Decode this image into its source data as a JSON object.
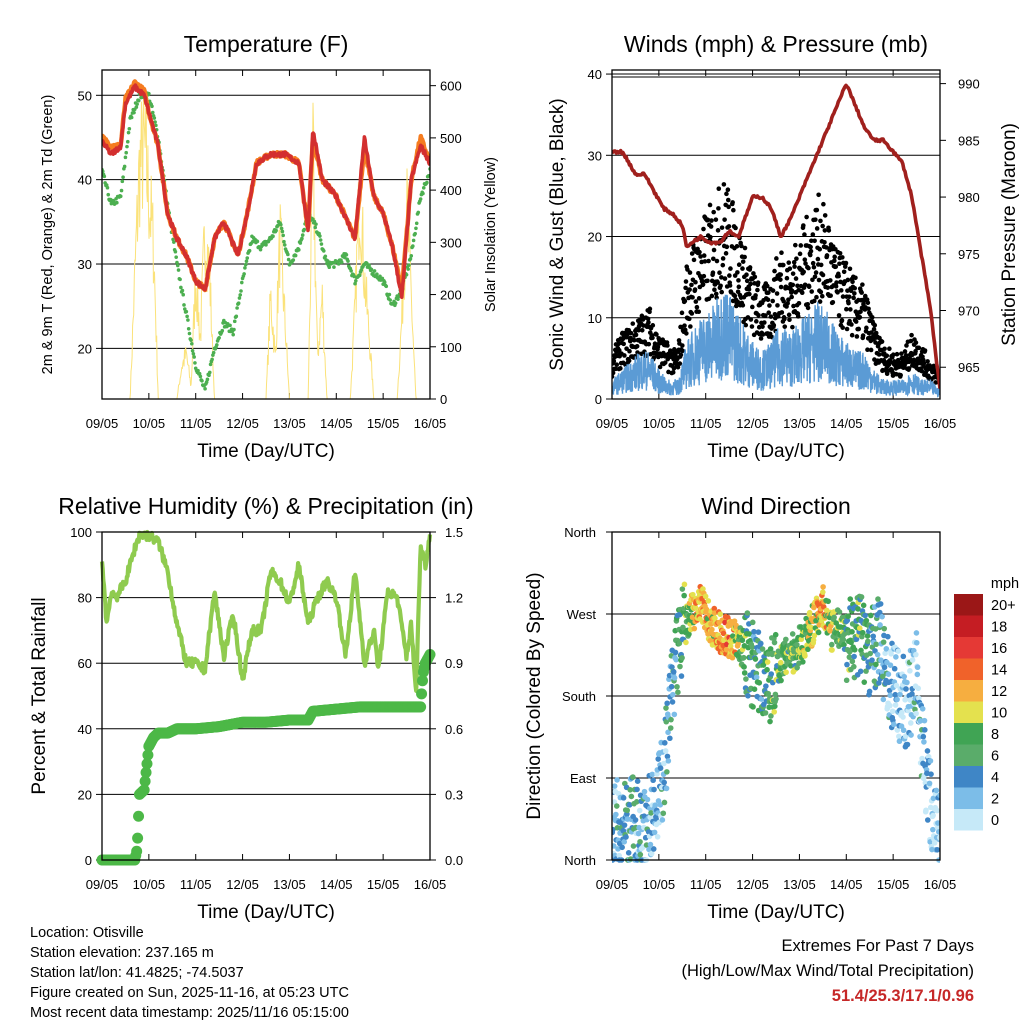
{
  "info": {
    "location": "Location: Otisville",
    "elevation": "Station elevation: 237.165 m",
    "latlon": "Station lat/lon: 41.4825; -74.5037",
    "created": "Figure created on Sun, 2025-11-16, at 05:23 UTC",
    "latest": "Most recent data timestamp: 2025/11/16 05:15:00"
  },
  "extremes": {
    "title": "Extremes For Past 7 Days",
    "subtitle": "(High/Low/Max Wind/Total Precipitation)",
    "values": "51.4/25.3/17.1/0.96"
  },
  "colors": {
    "temp2m": "#d32f2f",
    "temp9m": "#f57c20",
    "dew": "#4caf50",
    "solar": "#fbe27a",
    "gust": "#000000",
    "wind": "#5b9bd5",
    "pressure": "#a0201d",
    "rh": "#8fcb4f",
    "rain": "#4cb847"
  },
  "chart_data": [
    {
      "type": "line",
      "title": "Temperature (F)",
      "xlabel": "Time (Day/UTC)",
      "ylabel": "2m & 9m T (Red, Orange) & 2m Td (Green)",
      "ylabel_right": "Solar Insolation (Yellow)",
      "x_ticks": [
        "09/05",
        "10/05",
        "11/05",
        "12/05",
        "13/05",
        "14/05",
        "15/05",
        "16/05"
      ],
      "xlim": [
        0,
        7
      ],
      "ylim": [
        14,
        53
      ],
      "y_ticks": [
        20,
        30,
        40,
        50
      ],
      "ylim_right": [
        0,
        630
      ],
      "y_ticks_right": [
        0,
        100,
        200,
        300,
        400,
        500,
        600
      ],
      "grid": "horizontal",
      "series": [
        {
          "name": "2m T",
          "x": [
            0,
            0.2,
            0.4,
            0.5,
            0.7,
            0.9,
            1.0,
            1.2,
            1.4,
            1.6,
            1.8,
            2.0,
            2.2,
            2.4,
            2.6,
            2.9,
            3.1,
            3.3,
            3.6,
            3.9,
            4.2,
            4.4,
            4.5,
            4.7,
            5.0,
            5.4,
            5.6,
            5.8,
            6.0,
            6.2,
            6.4,
            6.6,
            6.8,
            7.0
          ],
          "values": [
            44.5,
            43,
            44,
            49,
            51,
            50,
            48,
            44,
            36,
            33,
            31,
            28,
            27,
            33,
            35,
            31,
            36,
            42,
            43,
            43,
            42,
            34,
            46,
            40,
            38,
            33,
            45,
            38,
            36,
            32,
            26,
            40,
            44,
            42
          ]
        },
        {
          "name": "9m T",
          "x": [
            0,
            0.2,
            0.4,
            0.5,
            0.7,
            0.9,
            1.0,
            1.2,
            1.4,
            1.6,
            1.8,
            2.0,
            2.2,
            2.4,
            2.6,
            2.9,
            3.1,
            3.3,
            3.6,
            3.9,
            4.2,
            4.4,
            4.5,
            4.7,
            5.0,
            5.4,
            5.6,
            5.8,
            6.0,
            6.2,
            6.4,
            6.6,
            6.8,
            7.0
          ],
          "values": [
            45,
            44,
            44,
            49.5,
            51.5,
            50.5,
            48,
            44,
            36,
            33,
            31,
            28,
            27,
            33,
            35,
            31,
            36,
            42,
            43,
            43,
            42,
            34,
            45,
            40,
            38,
            33,
            44,
            38,
            36,
            32,
            27,
            40,
            45,
            42
          ]
        },
        {
          "name": "2m Td",
          "x": [
            0,
            0.2,
            0.4,
            0.6,
            0.8,
            1.0,
            1.2,
            1.4,
            1.6,
            1.8,
            2.0,
            2.2,
            2.4,
            2.6,
            2.8,
            3.0,
            3.2,
            3.4,
            3.6,
            3.8,
            4.0,
            4.2,
            4.4,
            4.6,
            4.8,
            5.0,
            5.2,
            5.4,
            5.6,
            5.8,
            6.0,
            6.2,
            6.4,
            6.6,
            6.8,
            7.0
          ],
          "values": [
            41,
            37,
            38,
            47,
            50,
            50,
            45,
            37,
            30,
            24,
            18,
            15,
            20,
            23,
            22,
            28,
            33,
            32,
            33,
            35,
            30,
            32,
            36,
            34,
            30,
            30,
            31,
            28,
            30,
            29,
            28,
            25,
            27,
            31,
            38,
            41
          ]
        },
        {
          "name": "Solar",
          "x": [
            0,
            0.3,
            0.6,
            0.7,
            0.8,
            0.9,
            1.0,
            1.1,
            1.2,
            1.6,
            1.7,
            1.8,
            1.9,
            2.0,
            2.05,
            2.1,
            2.2,
            2.3,
            2.4,
            2.7,
            3.0,
            3.3,
            3.5,
            3.6,
            3.7,
            3.8,
            4.0,
            4.4,
            4.5,
            4.55,
            4.6,
            4.7,
            4.8,
            5.0,
            5.3,
            5.4,
            5.5,
            5.6,
            5.7,
            5.8,
            6.0,
            6.3,
            6.4,
            6.5,
            6.6,
            6.7,
            7.0
          ],
          "values": [
            0,
            0,
            0,
            300,
            570,
            620,
            500,
            380,
            0,
            0,
            80,
            110,
            30,
            300,
            220,
            150,
            420,
            300,
            0,
            0,
            0,
            0,
            0,
            250,
            100,
            400,
            0,
            0,
            620,
            350,
            100,
            250,
            0,
            0,
            0,
            220,
            520,
            300,
            160,
            0,
            0,
            0,
            200,
            480,
            250,
            0,
            0
          ]
        }
      ]
    },
    {
      "type": "scatter",
      "title": "Winds (mph) & Pressure (mb)",
      "xlabel": "Time (Day/UTC)",
      "ylabel": "Sonic Wind & Gust (Blue, Black)",
      "ylabel_right": "Station Pressure (Maroon)",
      "x_ticks": [
        "09/05",
        "10/05",
        "11/05",
        "12/05",
        "13/05",
        "14/05",
        "15/05",
        "16/05"
      ],
      "xlim": [
        0,
        7
      ],
      "ylim": [
        0,
        40.5
      ],
      "y_ticks": [
        0,
        10,
        20,
        30,
        40
      ],
      "ylim_right": [
        962.2,
        991.2
      ],
      "y_ticks_right": [
        965,
        970,
        975,
        980,
        985,
        990
      ],
      "grid": "horizontal",
      "series": [
        {
          "name": "Gust",
          "x": [
            0,
            0.2,
            0.4,
            0.6,
            0.8,
            1.0,
            1.2,
            1.4,
            1.6,
            1.8,
            2.0,
            2.2,
            2.4,
            2.6,
            2.8,
            3.0,
            3.2,
            3.4,
            3.6,
            3.8,
            4.0,
            4.2,
            4.4,
            4.6,
            4.8,
            5.0,
            5.2,
            5.4,
            5.6,
            5.8,
            6.0,
            6.2,
            6.4,
            6.6,
            6.8,
            7.0
          ],
          "values": [
            5,
            7,
            8,
            9,
            10,
            7,
            6,
            5,
            15,
            18,
            20,
            22,
            24,
            21,
            17,
            14,
            12,
            13,
            17,
            15,
            18,
            20,
            22,
            20,
            16,
            15,
            13,
            12,
            8,
            6,
            5,
            5,
            7,
            6,
            4,
            3
          ]
        },
        {
          "name": "Wind",
          "x": [
            0,
            0.2,
            0.4,
            0.6,
            0.8,
            1.0,
            1.2,
            1.4,
            1.6,
            1.8,
            2.0,
            2.2,
            2.4,
            2.6,
            2.8,
            3.0,
            3.2,
            3.4,
            3.6,
            3.8,
            4.0,
            4.2,
            4.4,
            4.6,
            4.8,
            5.0,
            5.2,
            5.4,
            5.6,
            5.8,
            6.0,
            6.2,
            6.4,
            6.6,
            6.8,
            7.0
          ],
          "values": [
            2,
            3,
            4,
            5,
            5,
            3,
            2,
            2,
            6,
            8,
            9,
            10,
            12,
            10,
            8,
            6,
            5,
            6,
            8,
            7,
            8,
            9,
            10,
            9,
            7,
            6,
            5,
            5,
            3,
            2,
            2,
            2,
            3,
            2,
            2,
            1
          ]
        },
        {
          "name": "Pressure",
          "x": [
            0,
            0.2,
            0.3,
            0.5,
            0.7,
            0.9,
            1.1,
            1.3,
            1.5,
            1.6,
            1.7,
            1.9,
            2.1,
            2.3,
            2.5,
            2.7,
            3.0,
            3.2,
            3.4,
            3.6,
            3.8,
            4.0,
            4.2,
            4.4,
            4.6,
            4.8,
            5.0,
            5.2,
            5.4,
            5.6,
            5.8,
            6.0,
            6.2,
            6.4,
            6.6,
            6.8,
            7.0
          ],
          "values": [
            984,
            984,
            983.5,
            982,
            982,
            980.5,
            979,
            978.5,
            977.5,
            975.5,
            976,
            976.5,
            976,
            976,
            977,
            976.5,
            980,
            980,
            979,
            976.5,
            978,
            980,
            982,
            984,
            986,
            988,
            990,
            988,
            986,
            985,
            985,
            984,
            983,
            980,
            975,
            970,
            963
          ]
        }
      ]
    },
    {
      "type": "line",
      "title": "Relative Humidity (%) & Precipitation (in)",
      "xlabel": "Time (Day/UTC)",
      "ylabel": "Percent & Total Rainfall",
      "x_ticks": [
        "09/05",
        "10/05",
        "11/05",
        "12/05",
        "13/05",
        "14/05",
        "15/05",
        "16/05"
      ],
      "xlim": [
        0,
        7
      ],
      "ylim": [
        0,
        100
      ],
      "y_ticks": [
        0,
        20,
        40,
        60,
        80,
        100
      ],
      "ylim_right": [
        0,
        1.5
      ],
      "y_ticks_right": [
        "0.0",
        "0.3",
        "0.6",
        "0.9",
        "1.2",
        "1.5"
      ],
      "grid": "horizontal",
      "series": [
        {
          "name": "RH",
          "x": [
            0,
            0.1,
            0.2,
            0.3,
            0.5,
            0.7,
            0.8,
            1.0,
            1.2,
            1.4,
            1.6,
            1.8,
            2.0,
            2.2,
            2.4,
            2.6,
            2.8,
            3.0,
            3.2,
            3.4,
            3.6,
            3.8,
            4.0,
            4.2,
            4.4,
            4.6,
            4.8,
            5.0,
            5.2,
            5.4,
            5.6,
            5.8,
            5.9,
            6.1,
            6.3,
            6.5,
            6.6,
            6.7,
            6.8,
            6.9,
            7.0
          ],
          "values": [
            92,
            72,
            82,
            80,
            85,
            95,
            99,
            99,
            97,
            88,
            72,
            60,
            60,
            58,
            82,
            62,
            75,
            55,
            70,
            70,
            88,
            85,
            78,
            90,
            72,
            80,
            85,
            80,
            62,
            88,
            60,
            70,
            58,
            82,
            80,
            62,
            72,
            50,
            96,
            90,
            99
          ]
        },
        {
          "name": "Total Rainfall",
          "x": [
            0,
            0.5,
            0.7,
            0.75,
            0.8,
            0.9,
            1.0,
            1.1,
            1.2,
            1.4,
            1.6,
            2.0,
            2.5,
            3.0,
            3.5,
            4.0,
            4.4,
            4.5,
            5.0,
            5.5,
            6.0,
            6.5,
            6.8,
            6.85,
            6.9,
            7.0
          ],
          "values": [
            0.0,
            0.0,
            0.0,
            0.05,
            0.3,
            0.32,
            0.52,
            0.56,
            0.58,
            0.58,
            0.6,
            0.6,
            0.61,
            0.63,
            0.63,
            0.64,
            0.64,
            0.68,
            0.69,
            0.7,
            0.7,
            0.7,
            0.7,
            0.85,
            0.9,
            0.94
          ]
        }
      ]
    },
    {
      "type": "scatter",
      "title": "Wind Direction",
      "xlabel": "Time (Day/UTC)",
      "ylabel": "Direction (Colored By Speed)",
      "x_ticks": [
        "09/05",
        "10/05",
        "11/05",
        "12/05",
        "13/05",
        "14/05",
        "15/05",
        "16/05"
      ],
      "xlim": [
        0,
        7
      ],
      "ylim": [
        0,
        360
      ],
      "y_ticks": [
        "North",
        "East",
        "South",
        "West",
        "North"
      ],
      "legend": {
        "title": "mph",
        "labels": [
          "0",
          "2",
          "4",
          "6",
          "8",
          "10",
          "12",
          "14",
          "16",
          "18",
          "20+"
        ],
        "colors": [
          "#c6e9f8",
          "#7cbde8",
          "#3f86c6",
          "#5aac6a",
          "#40a454",
          "#e4e14e",
          "#f6ae40",
          "#f0622a",
          "#e53935",
          "#c51d23",
          "#9b1717"
        ]
      },
      "series": [
        {
          "name": "Direction",
          "x": [
            0.1,
            0.3,
            0.5,
            0.7,
            0.9,
            1.1,
            1.3,
            1.5,
            1.7,
            1.9,
            2.1,
            2.3,
            2.5,
            2.7,
            2.9,
            3.1,
            3.3,
            3.5,
            3.7,
            3.9,
            4.1,
            4.3,
            4.5,
            4.7,
            4.9,
            5.1,
            5.3,
            5.5,
            5.7,
            5.9,
            6.1,
            6.3,
            6.5,
            6.7,
            6.9
          ],
          "values": [
            40,
            35,
            45,
            30,
            60,
            90,
            200,
            250,
            270,
            280,
            260,
            250,
            245,
            240,
            220,
            210,
            200,
            205,
            220,
            230,
            240,
            260,
            280,
            250,
            255,
            240,
            250,
            230,
            240,
            200,
            180,
            170,
            200,
            90,
            40
          ],
          "speeds": [
            3,
            4,
            4,
            3,
            2,
            3,
            4,
            6,
            10,
            12,
            11,
            12,
            13,
            9,
            6,
            5,
            6,
            7,
            8,
            7,
            9,
            10,
            12,
            8,
            8,
            6,
            7,
            5,
            4,
            3,
            2,
            2,
            3,
            2,
            1
          ]
        }
      ]
    }
  ]
}
